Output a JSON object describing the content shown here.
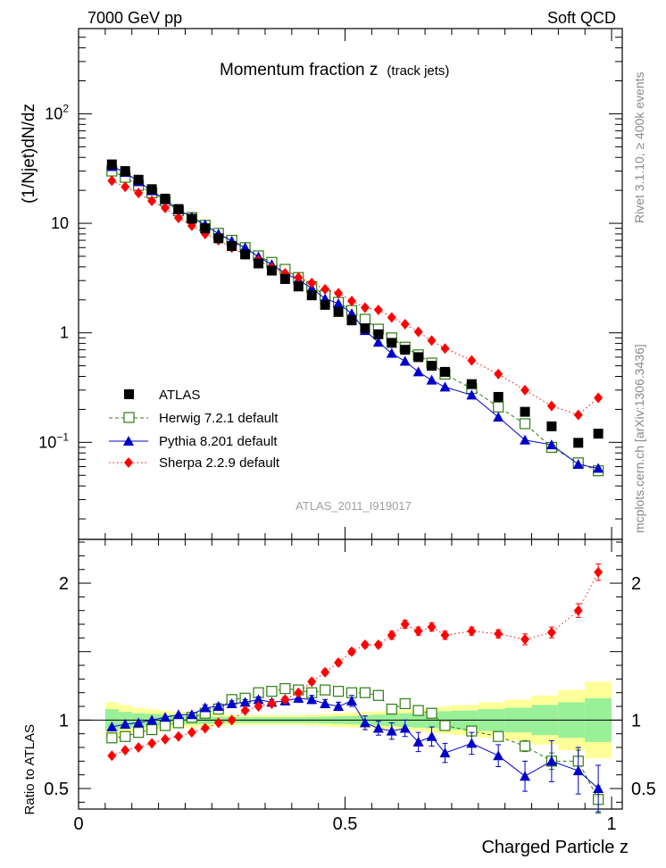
{
  "header": {
    "left": "7000 GeV pp",
    "right": "Soft QCD"
  },
  "side_labels": {
    "rivet": "Rivet 3.1.10, ≥ 400k events",
    "mcplots": "mcplots.cern.ch [arXiv:1306.3436]"
  },
  "chart_data": [
    {
      "type": "scatter",
      "panel": "main",
      "title": "Momentum fraction z",
      "title_note": "(track jets)",
      "ylabel": "(1/Njet)dN/dz",
      "yscale": "log",
      "ylim": [
        0.013,
        600
      ],
      "y_ticks": [
        {
          "value": 0.1,
          "base": "10",
          "exp": "−1"
        },
        {
          "value": 1,
          "label": "1"
        },
        {
          "value": 10,
          "label": "10"
        },
        {
          "value": 100,
          "base": "10",
          "exp": "2"
        }
      ],
      "xlim": [
        0,
        1.02
      ],
      "watermark": "ATLAS_2011_I919017",
      "legend_position": "bottom-left",
      "x": [
        0.0625,
        0.0875,
        0.1125,
        0.1375,
        0.1625,
        0.1875,
        0.2125,
        0.2375,
        0.2625,
        0.2875,
        0.3125,
        0.3375,
        0.3625,
        0.3875,
        0.4125,
        0.4375,
        0.4625,
        0.4875,
        0.5125,
        0.5375,
        0.5625,
        0.5875,
        0.6125,
        0.6375,
        0.6625,
        0.6875,
        0.7375,
        0.7875,
        0.8375,
        0.8875,
        0.9375,
        0.975
      ],
      "series": [
        {
          "name": "ATLAS",
          "marker": "filled-square",
          "color": "#000000",
          "values": [
            34.5,
            30.0,
            25.0,
            20.5,
            16.8,
            13.5,
            11.0,
            9.0,
            7.3,
            6.2,
            5.2,
            4.3,
            3.7,
            3.1,
            2.65,
            2.2,
            1.8,
            1.55,
            1.3,
            1.1,
            0.97,
            0.81,
            0.7,
            0.6,
            0.5,
            0.44,
            0.34,
            0.26,
            0.19,
            0.14,
            0.099,
            0.12
          ]
        },
        {
          "name": "Herwig 7.2.1 default",
          "marker": "open-square",
          "color": "#2e7d12",
          "line": "dashed",
          "values": [
            30.0,
            26.3,
            22.2,
            19.0,
            16.0,
            13.0,
            11.3,
            9.6,
            8.1,
            7.0,
            6.0,
            5.05,
            4.4,
            3.8,
            3.2,
            2.65,
            2.2,
            1.9,
            1.6,
            1.33,
            1.08,
            0.9,
            0.74,
            0.63,
            0.53,
            0.42,
            0.31,
            0.21,
            0.148,
            0.09,
            0.065,
            0.055
          ]
        },
        {
          "name": "Pythia 8.201 default",
          "marker": "filled-triangle",
          "color": "#0000cc",
          "line": "solid",
          "values": [
            33.0,
            29.2,
            24.0,
            19.8,
            16.4,
            13.3,
            11.4,
            9.7,
            8.0,
            6.9,
            6.0,
            4.95,
            4.2,
            3.5,
            3.05,
            2.55,
            2.05,
            1.85,
            1.5,
            1.05,
            0.82,
            0.65,
            0.55,
            0.44,
            0.37,
            0.32,
            0.27,
            0.17,
            0.105,
            0.095,
            0.063,
            0.058
          ]
        },
        {
          "name": "Sherpa 2.2.9 default",
          "marker": "filled-diamond",
          "color": "#ff0000",
          "line": "dotted",
          "values": [
            24.5,
            21.5,
            18.9,
            16.0,
            13.8,
            11.2,
            9.5,
            8.0,
            7.0,
            6.0,
            5.2,
            4.6,
            3.95,
            3.5,
            3.2,
            2.85,
            2.5,
            2.3,
            1.95,
            1.7,
            1.62,
            1.38,
            1.2,
            1.02,
            0.85,
            0.72,
            0.56,
            0.42,
            0.3,
            0.215,
            0.178,
            0.255
          ]
        }
      ]
    },
    {
      "type": "scatter",
      "panel": "ratio",
      "ylabel": "Ratio to ATLAS",
      "ylim": [
        0.35,
        2.32
      ],
      "y_ticks": [
        0.5,
        1,
        2
      ],
      "xlabel": "Charged Particle z",
      "xlim": [
        0,
        1.02
      ],
      "x_ticks": [
        0,
        0.5,
        1
      ],
      "x_bin_edges": [
        0.05,
        0.075,
        0.1,
        0.125,
        0.15,
        0.175,
        0.2,
        0.225,
        0.25,
        0.275,
        0.3,
        0.325,
        0.35,
        0.375,
        0.4,
        0.425,
        0.45,
        0.475,
        0.5,
        0.525,
        0.55,
        0.575,
        0.6,
        0.625,
        0.65,
        0.675,
        0.7,
        0.75,
        0.8,
        0.85,
        0.9,
        0.95,
        1.0
      ],
      "band_inner": [
        0.08,
        0.06,
        0.05,
        0.045,
        0.04,
        0.035,
        0.03,
        0.028,
        0.025,
        0.022,
        0.02,
        0.02,
        0.02,
        0.02,
        0.02,
        0.022,
        0.025,
        0.028,
        0.03,
        0.035,
        0.04,
        0.045,
        0.05,
        0.055,
        0.06,
        0.065,
        0.07,
        0.08,
        0.09,
        0.11,
        0.13,
        0.16
      ],
      "band_outer": [
        0.13,
        0.11,
        0.09,
        0.08,
        0.07,
        0.06,
        0.055,
        0.05,
        0.045,
        0.04,
        0.035,
        0.035,
        0.035,
        0.035,
        0.035,
        0.04,
        0.045,
        0.05,
        0.055,
        0.06,
        0.065,
        0.07,
        0.075,
        0.08,
        0.09,
        0.1,
        0.11,
        0.13,
        0.15,
        0.18,
        0.22,
        0.28
      ],
      "band_colors": {
        "inner": "#99f099",
        "outer": "#ffff99"
      },
      "series": [
        {
          "name": "Herwig 7.2.1 default",
          "values": [
            0.87,
            0.88,
            0.91,
            0.93,
            0.96,
            0.98,
            1.02,
            1.05,
            1.08,
            1.15,
            1.16,
            1.2,
            1.21,
            1.23,
            1.22,
            1.2,
            1.22,
            1.21,
            1.2,
            1.2,
            1.18,
            1.08,
            1.12,
            1.07,
            1.05,
            0.96,
            0.92,
            0.88,
            0.81,
            0.7,
            0.7,
            0.42
          ],
          "errors": [
            0.01,
            0.01,
            0.01,
            0.01,
            0.01,
            0.01,
            0.01,
            0.01,
            0.01,
            0.01,
            0.01,
            0.01,
            0.01,
            0.01,
            0.01,
            0.01,
            0.01,
            0.01,
            0.01,
            0.02,
            0.02,
            0.02,
            0.02,
            0.02,
            0.02,
            0.03,
            0.03,
            0.03,
            0.04,
            0.06,
            0.08,
            0.1
          ]
        },
        {
          "name": "Pythia 8.201 default",
          "values": [
            0.95,
            0.97,
            0.98,
            1.0,
            1.02,
            1.04,
            1.04,
            1.09,
            1.1,
            1.12,
            1.13,
            1.15,
            1.13,
            1.14,
            1.16,
            1.15,
            1.12,
            1.1,
            1.14,
            0.98,
            0.94,
            0.92,
            0.94,
            0.84,
            0.88,
            0.76,
            0.83,
            0.74,
            0.59,
            0.7,
            0.63,
            0.5
          ],
          "errors": [
            0.01,
            0.01,
            0.01,
            0.01,
            0.01,
            0.01,
            0.01,
            0.02,
            0.02,
            0.02,
            0.02,
            0.02,
            0.02,
            0.03,
            0.03,
            0.03,
            0.03,
            0.03,
            0.04,
            0.05,
            0.05,
            0.06,
            0.06,
            0.07,
            0.07,
            0.07,
            0.08,
            0.08,
            0.11,
            0.15,
            0.17,
            0.17
          ]
        },
        {
          "name": "Sherpa 2.2.9 default",
          "values": [
            0.74,
            0.78,
            0.8,
            0.83,
            0.86,
            0.88,
            0.91,
            0.94,
            0.98,
            1.0,
            1.07,
            1.1,
            1.12,
            1.15,
            1.2,
            1.28,
            1.35,
            1.42,
            1.5,
            1.55,
            1.55,
            1.62,
            1.7,
            1.65,
            1.68,
            1.62,
            1.65,
            1.63,
            1.59,
            1.64,
            1.8,
            2.08
          ],
          "errors": [
            0.01,
            0.01,
            0.01,
            0.01,
            0.01,
            0.01,
            0.01,
            0.01,
            0.01,
            0.01,
            0.01,
            0.01,
            0.01,
            0.01,
            0.01,
            0.02,
            0.02,
            0.02,
            0.02,
            0.02,
            0.02,
            0.03,
            0.03,
            0.03,
            0.03,
            0.03,
            0.03,
            0.03,
            0.04,
            0.04,
            0.05,
            0.06
          ]
        }
      ]
    }
  ]
}
